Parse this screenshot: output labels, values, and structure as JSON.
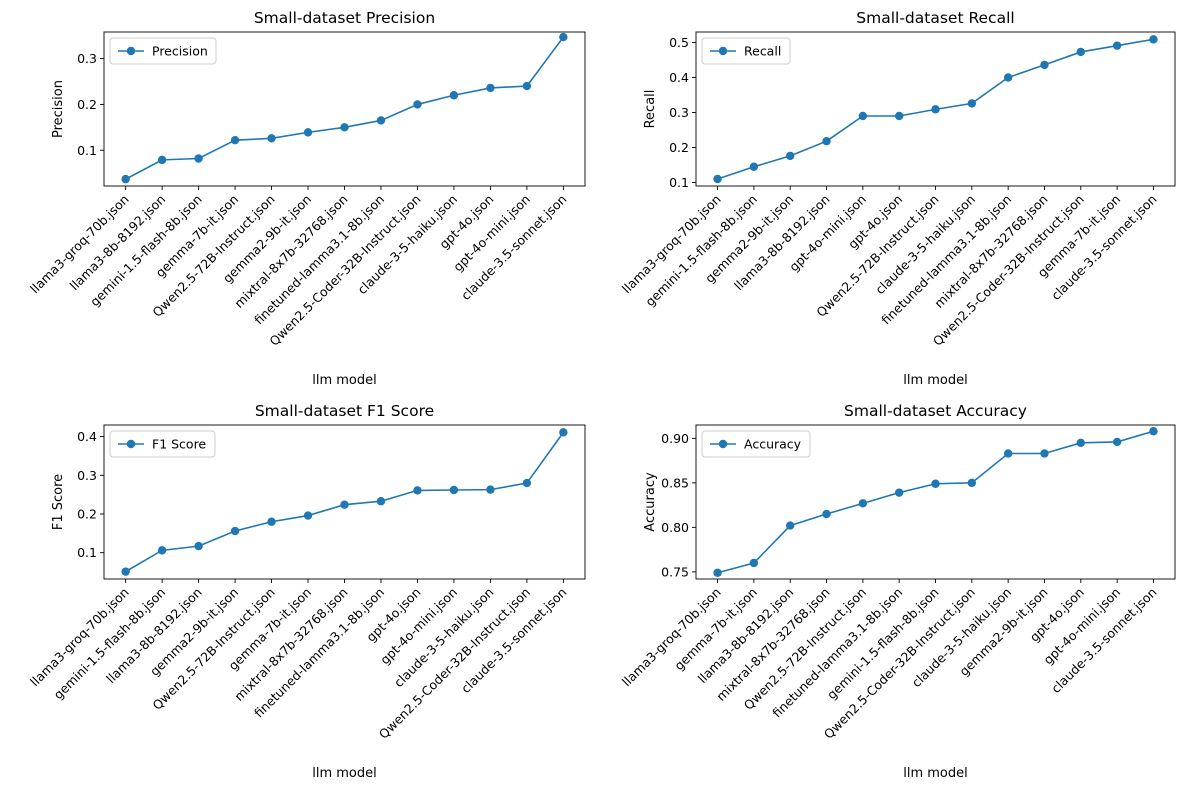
{
  "chart_data": [
    {
      "type": "line",
      "title": "Small-dataset Precision",
      "xlabel": "llm model",
      "ylabel": "Precision",
      "ylim": [
        0.022,
        0.358
      ],
      "yticks": [
        0.1,
        0.2,
        0.3
      ],
      "ytick_labels": [
        "0.1",
        "0.2",
        "0.3"
      ],
      "grid": false,
      "legend": "top-left",
      "color": "#1f77b4",
      "categories": [
        "llama3-groq-70b.json",
        "llama3-8b-8192.json",
        "gemini-1.5-flash-8b.json",
        "gemma-7b-it.json",
        "Qwen2.5-72B-Instruct.json",
        "gemma2-9b-it.json",
        "mixtral-8x7b-32768.json",
        "finetuned-lamma3.1-8b.json",
        "Qwen2.5-Coder-32B-Instruct.json",
        "claude-3-5-haiku.json",
        "gpt-4o.json",
        "gpt-4o-mini.json",
        "claude-3.5-sonnet.json"
      ],
      "series": [
        {
          "name": "Precision",
          "values": [
            0.037,
            0.079,
            0.082,
            0.122,
            0.126,
            0.139,
            0.15,
            0.165,
            0.2,
            0.22,
            0.236,
            0.24,
            0.347
          ]
        }
      ]
    },
    {
      "type": "line",
      "title": "Small-dataset Recall",
      "xlabel": "llm model",
      "ylabel": "Recall",
      "ylim": [
        0.09,
        0.53
      ],
      "yticks": [
        0.1,
        0.2,
        0.3,
        0.4,
        0.5
      ],
      "ytick_labels": [
        "0.1",
        "0.2",
        "0.3",
        "0.4",
        "0.5"
      ],
      "grid": false,
      "legend": "top-left",
      "color": "#1f77b4",
      "categories": [
        "llama3-groq-70b.json",
        "gemini-1.5-flash-8b.json",
        "gemma2-9b-it.json",
        "llama3-8b-8192.json",
        "gpt-4o-mini.json",
        "gpt-4o.json",
        "Qwen2.5-72B-Instruct.json",
        "claude-3-5-haiku.json",
        "finetuned-lamma3.1-8b.json",
        "mixtral-8x7b-32768.json",
        "Qwen2.5-Coder-32B-Instruct.json",
        "gemma-7b-it.json",
        "claude-3.5-sonnet.json"
      ],
      "series": [
        {
          "name": "Recall",
          "values": [
            0.11,
            0.145,
            0.176,
            0.218,
            0.29,
            0.29,
            0.309,
            0.326,
            0.4,
            0.436,
            0.473,
            0.491,
            0.509
          ]
        }
      ]
    },
    {
      "type": "line",
      "title": "Small-dataset F1 Score",
      "xlabel": "llm model",
      "ylabel": "F1 Score",
      "ylim": [
        0.032,
        0.43
      ],
      "yticks": [
        0.1,
        0.2,
        0.3,
        0.4
      ],
      "ytick_labels": [
        "0.1",
        "0.2",
        "0.3",
        "0.4"
      ],
      "grid": false,
      "legend": "top-left",
      "color": "#1f77b4",
      "categories": [
        "llama3-groq-70b.json",
        "gemini-1.5-flash-8b.json",
        "llama3-8b-8192.json",
        "gemma2-9b-it.json",
        "Qwen2.5-72B-Instruct.json",
        "gemma-7b-it.json",
        "mixtral-8x7b-32768.json",
        "finetuned-lamma3.1-8b.json",
        "gpt-4o.json",
        "gpt-4o-mini.json",
        "claude-3-5-haiku.json",
        "Qwen2.5-Coder-32B-Instruct.json",
        "claude-3.5-sonnet.json"
      ],
      "series": [
        {
          "name": "F1 Score",
          "values": [
            0.051,
            0.106,
            0.117,
            0.156,
            0.18,
            0.196,
            0.224,
            0.233,
            0.261,
            0.262,
            0.263,
            0.28,
            0.411
          ]
        }
      ]
    },
    {
      "type": "line",
      "title": "Small-dataset Accuracy",
      "xlabel": "llm model",
      "ylabel": "Accuracy",
      "ylim": [
        0.742,
        0.915
      ],
      "yticks": [
        0.75,
        0.8,
        0.85,
        0.9
      ],
      "ytick_labels": [
        "0.75",
        "0.80",
        "0.85",
        "0.90"
      ],
      "grid": false,
      "legend": "top-left",
      "color": "#1f77b4",
      "categories": [
        "llama3-groq-70b.json",
        "gemma-7b-it.json",
        "llama3-8b-8192.json",
        "mixtral-8x7b-32768.json",
        "Qwen2.5-72B-Instruct.json",
        "finetuned-lamma3.1-8b.json",
        "gemini-1.5-flash-8b.json",
        "Qwen2.5-Coder-32B-Instruct.json",
        "claude-3-5-haiku.json",
        "gemma2-9b-it.json",
        "gpt-4o.json",
        "gpt-4o-mini.json",
        "claude-3.5-sonnet.json"
      ],
      "series": [
        {
          "name": "Accuracy",
          "values": [
            0.749,
            0.76,
            0.802,
            0.815,
            0.827,
            0.839,
            0.849,
            0.85,
            0.883,
            0.883,
            0.895,
            0.896,
            0.908
          ]
        }
      ]
    }
  ]
}
